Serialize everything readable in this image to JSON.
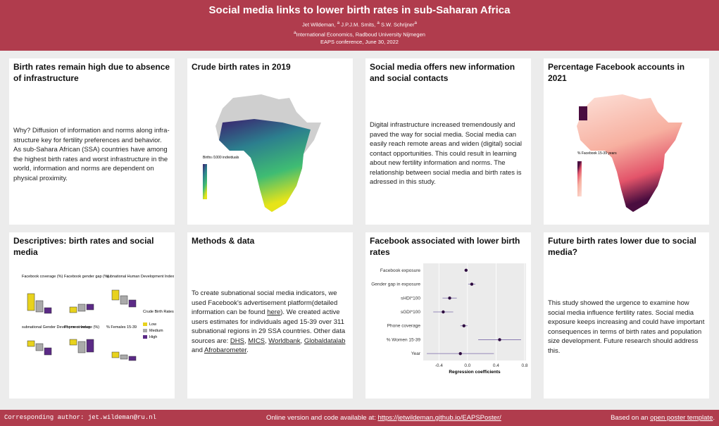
{
  "header": {
    "title": "Social media links to lower birth rates in sub-Saharan Africa",
    "authors": [
      "Jet Wildeman,",
      "J.P.J.M. Smits,",
      "S.W. Schrijner"
    ],
    "affiliation_mark": "a",
    "affiliation": "International Economics, Radboud University Nijmegen",
    "conference": "EAPS conference, June 30, 2022"
  },
  "panels": [
    {
      "title": "Birth rates remain high due to absence of infrastructure",
      "text": "Why? Diffusion of information and norms along infra­structure key for fertility preferences and behavior. As sub-Sahara African (SSA) countries have among the highest birth rates and worst infrastructure in the world, information and norms are dependent on physi­cal proximity."
    },
    {
      "title": "Crude birth rates in 2019",
      "legend_title": "Births /1000 individuals"
    },
    {
      "title": "Social media offers new information and social contacts",
      "text": "Digital infrastructure increased tremendously and paved the way for social media. Social media can easily reach remote areas and widen (digital) social contact opportunities. This could result in learning about new fertility information and norms. The relationship be­tween social media and birth rates is adressed in this study."
    },
    {
      "title": "Percentage Facebook accounts in 2021",
      "legend_title": "% Facebook 15-39 years"
    },
    {
      "title": "Descriptives: birth rates and social media",
      "facets": [
        "Facebook coverage (%)",
        "Facebook gender gap (%)",
        "subnational Human Development Index",
        "subnational Gender Development Index",
        "Phone coverage (%)",
        "% Females 15-39"
      ],
      "legend_title": "Crude Birth Rates",
      "legend_items": [
        "Low",
        "Medium",
        "High"
      ]
    },
    {
      "title": "Methods & data",
      "segments": [
        "To create subnational social media indicators, we used Facebook's advertisement platform(detailed informa­tion can be found ",
        "here",
        "). We created active users esti­mates for individuals aged 15-39 over 311 subnational regions in 29 SSA countries. Other data sources are: ",
        "DHS",
        ", ",
        "MICS",
        ", ",
        "Worldbank",
        ", ",
        "Globaldatalab",
        " and ",
        "Afrobarometer",
        "."
      ]
    },
    {
      "title": "Facebook associated with lower birth rates"
    },
    {
      "title": "Future birth rates lower due to social media?",
      "text": "This study showed the urgence to examine how social media influence fertility rates. Social media exposure keeps increasing and could have important conse­quences in terms of birth rates and population size de­velopment. Future research should address this."
    }
  ],
  "chart_data": {
    "type": "coefficient",
    "x_label": "Regression coefficients",
    "categories": [
      "Facebook exposure",
      "Gender gap in exposure",
      "sHDI*100",
      "sGDI*100",
      "Phone coverage",
      "% Women 15-39",
      "Year"
    ],
    "values": [
      -0.02,
      0.06,
      -0.25,
      -0.34,
      -0.05,
      0.45,
      -0.1
    ],
    "errors": [
      0.02,
      0.05,
      0.1,
      0.14,
      0.05,
      0.3,
      0.47
    ],
    "color": "#2d0a3f",
    "xlim": [
      -0.62,
      0.82
    ],
    "xticks": [
      -0.4,
      {
        "value": 0,
        "label": "0.0"
      },
      0.4,
      0.8
    ]
  },
  "footer": {
    "left": "Corresponding author: jet.wildeman@ru.nl",
    "center": "Online version and code available at:",
    "center_link": "https://jetwildeman.github.io/EAPSPoster/",
    "right": "Based on an",
    "right_link": "open poster template",
    "right_end": "."
  }
}
